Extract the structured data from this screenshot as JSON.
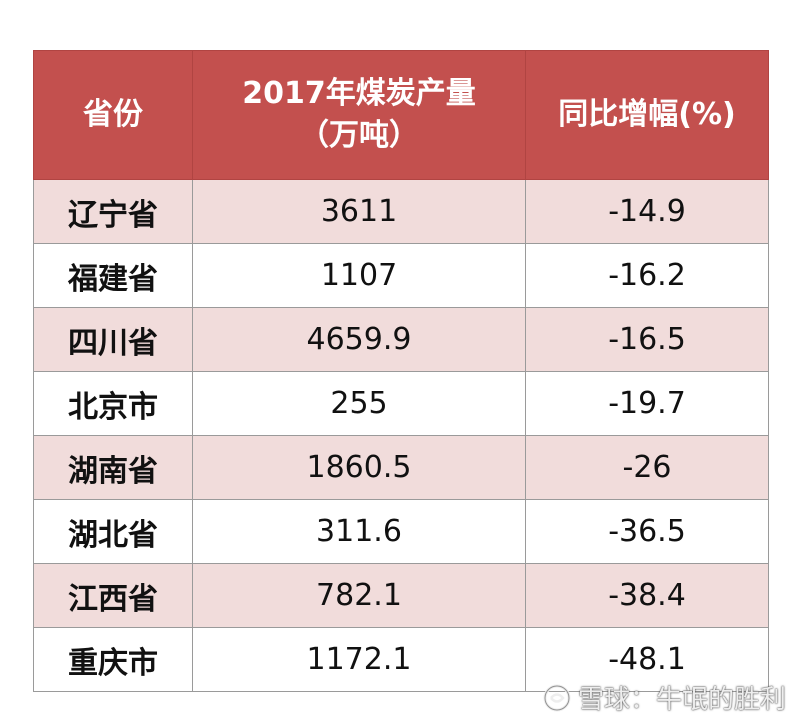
{
  "table": {
    "header": [
      [
        "省份"
      ],
      [
        "2017年煤炭产量",
        "（万吨）"
      ],
      [
        "同比增幅(%)"
      ]
    ],
    "rows": [
      [
        "辽宁省",
        "3611",
        "-14.9"
      ],
      [
        "福建省",
        "1107",
        "-16.2"
      ],
      [
        "四川省",
        "4659.9",
        "-16.5"
      ],
      [
        "北京市",
        "255",
        "-19.7"
      ],
      [
        "湖南省",
        "1860.5",
        "-26"
      ],
      [
        "湖北省",
        "311.6",
        "-36.5"
      ],
      [
        "江西省",
        "782.1",
        "-38.4"
      ],
      [
        "重庆市",
        "1172.1",
        "-48.1"
      ]
    ]
  },
  "watermark": "雪球：牛氓的胜利"
}
